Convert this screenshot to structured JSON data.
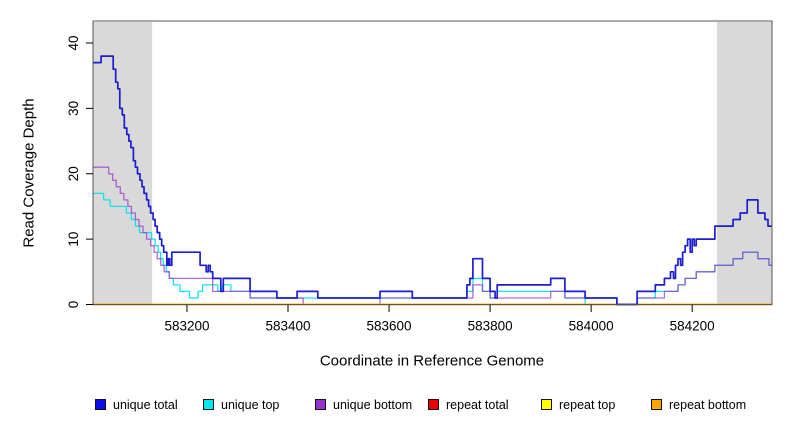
{
  "chart_data": {
    "type": "line",
    "step": true,
    "title": "",
    "xlabel": "Coordinate in Reference Genome",
    "ylabel": "Read Coverage Depth",
    "xlim": [
      583014,
      584358
    ],
    "ylim": [
      0,
      40
    ],
    "xticks": [
      583200,
      583400,
      583600,
      583800,
      584000,
      584200
    ],
    "xtick_labels": [
      "583200",
      "583400",
      "583600",
      "583800",
      "584000",
      "584200"
    ],
    "yticks": [
      0,
      10,
      20,
      30,
      40
    ],
    "ytick_labels": [
      "0",
      "10",
      "20",
      "30",
      "40"
    ],
    "grid": false,
    "shaded_regions": [
      {
        "name": "left-highlight",
        "x0": 583014,
        "x1": 583131,
        "color": "#d9d9d9"
      },
      {
        "name": "right-highlight",
        "x0": 584249,
        "x1": 584358,
        "color": "#d9d9d9"
      }
    ],
    "series": [
      {
        "name": "unique top",
        "color": "#00dfe8",
        "line_opacity": 0.9,
        "line_width": 1.3,
        "points": [
          [
            583014,
            17
          ],
          [
            583035,
            16
          ],
          [
            583048,
            15
          ],
          [
            583080,
            14
          ],
          [
            583090,
            13
          ],
          [
            583098,
            12
          ],
          [
            583106,
            11
          ],
          [
            583130,
            10
          ],
          [
            583137,
            9
          ],
          [
            583143,
            8
          ],
          [
            583148,
            7
          ],
          [
            583153,
            6
          ],
          [
            583159,
            5
          ],
          [
            583165,
            4
          ],
          [
            583173,
            3
          ],
          [
            583186,
            2
          ],
          [
            583205,
            1
          ],
          [
            583222,
            2
          ],
          [
            583231,
            3
          ],
          [
            583261,
            2
          ],
          [
            583270,
            3
          ],
          [
            583287,
            2
          ],
          [
            583325,
            1
          ],
          [
            583754,
            2
          ],
          [
            583766,
            4
          ],
          [
            583785,
            2
          ],
          [
            583800,
            1
          ],
          [
            583814,
            2
          ],
          [
            583948,
            1
          ],
          [
            583988,
            0
          ],
          [
            584091,
            1
          ],
          [
            584127,
            2
          ],
          [
            584172,
            3
          ],
          [
            584186,
            4
          ],
          [
            584208,
            5
          ],
          [
            584245,
            6
          ],
          [
            584281,
            7
          ],
          [
            584300,
            8
          ],
          [
            584330,
            7
          ],
          [
            584352,
            6
          ]
        ]
      },
      {
        "name": "unique bottom",
        "color": "#9932cc",
        "line_opacity": 0.72,
        "line_width": 1.3,
        "points": [
          [
            583014,
            21
          ],
          [
            583045,
            20
          ],
          [
            583053,
            19
          ],
          [
            583060,
            18
          ],
          [
            583068,
            17
          ],
          [
            583075,
            16
          ],
          [
            583083,
            15
          ],
          [
            583090,
            14
          ],
          [
            583098,
            13
          ],
          [
            583105,
            12
          ],
          [
            583113,
            11
          ],
          [
            583120,
            10
          ],
          [
            583128,
            9
          ],
          [
            583135,
            8
          ],
          [
            583141,
            7
          ],
          [
            583148,
            6
          ],
          [
            583155,
            5
          ],
          [
            583165,
            4
          ],
          [
            583251,
            2
          ],
          [
            583325,
            1
          ],
          [
            583430,
            0
          ],
          [
            583582,
            1
          ],
          [
            583754,
            1
          ],
          [
            583766,
            3
          ],
          [
            583785,
            2
          ],
          [
            583800,
            1
          ],
          [
            583814,
            1
          ],
          [
            583920,
            2
          ],
          [
            583948,
            1
          ],
          [
            583988,
            1
          ],
          [
            584051,
            0
          ],
          [
            584091,
            1
          ],
          [
            584145,
            2
          ],
          [
            584172,
            3
          ],
          [
            584186,
            4
          ],
          [
            584208,
            5
          ],
          [
            584245,
            6
          ],
          [
            584281,
            7
          ],
          [
            584300,
            8
          ],
          [
            584330,
            7
          ],
          [
            584352,
            6
          ]
        ]
      },
      {
        "name": "repeat total",
        "color": "#ee0000",
        "line_opacity": 1,
        "line_width": 1.3,
        "points": [
          [
            583014,
            0
          ]
        ]
      },
      {
        "name": "repeat top",
        "color": "#ffff00",
        "line_opacity": 1,
        "line_width": 1.3,
        "points": [
          [
            583014,
            0
          ]
        ]
      },
      {
        "name": "repeat bottom",
        "color": "#ffa500",
        "line_opacity": 1,
        "line_width": 1.7,
        "points": [
          [
            583014,
            0
          ]
        ]
      },
      {
        "name": "unique total",
        "color": "#1d1dd1",
        "line_opacity": 1,
        "line_width": 1.7,
        "points": [
          [
            583014,
            37
          ],
          [
            583030,
            38
          ],
          [
            583054,
            36
          ],
          [
            583059,
            34
          ],
          [
            583063,
            33
          ],
          [
            583067,
            30
          ],
          [
            583072,
            29
          ],
          [
            583076,
            27
          ],
          [
            583081,
            26
          ],
          [
            583085,
            25
          ],
          [
            583089,
            24
          ],
          [
            583094,
            22
          ],
          [
            583098,
            21
          ],
          [
            583102,
            20
          ],
          [
            583107,
            19
          ],
          [
            583111,
            18
          ],
          [
            583115,
            17
          ],
          [
            583120,
            16
          ],
          [
            583124,
            15
          ],
          [
            583128,
            14
          ],
          [
            583133,
            13
          ],
          [
            583137,
            12
          ],
          [
            583141,
            11
          ],
          [
            583146,
            10
          ],
          [
            583150,
            9
          ],
          [
            583154,
            8
          ],
          [
            583160,
            6
          ],
          [
            583163,
            7
          ],
          [
            583166,
            6
          ],
          [
            583170,
            8
          ],
          [
            583226,
            6
          ],
          [
            583238,
            5
          ],
          [
            583242,
            6
          ],
          [
            583246,
            5
          ],
          [
            583251,
            4
          ],
          [
            583267,
            2
          ],
          [
            583272,
            4
          ],
          [
            583325,
            2
          ],
          [
            583378,
            1
          ],
          [
            583418,
            2
          ],
          [
            583459,
            1
          ],
          [
            583582,
            2
          ],
          [
            583646,
            1
          ],
          [
            583754,
            3
          ],
          [
            583760,
            4
          ],
          [
            583766,
            7
          ],
          [
            583785,
            4
          ],
          [
            583800,
            2
          ],
          [
            583810,
            1
          ],
          [
            583814,
            3
          ],
          [
            583920,
            4
          ],
          [
            583948,
            2
          ],
          [
            583988,
            1
          ],
          [
            584051,
            0
          ],
          [
            584091,
            2
          ],
          [
            584127,
            3
          ],
          [
            584145,
            4
          ],
          [
            584157,
            5
          ],
          [
            584163,
            4
          ],
          [
            584167,
            6
          ],
          [
            584172,
            7
          ],
          [
            584177,
            6
          ],
          [
            584181,
            8
          ],
          [
            584186,
            9
          ],
          [
            584191,
            10
          ],
          [
            584196,
            8
          ],
          [
            584200,
            10
          ],
          [
            584204,
            9
          ],
          [
            584208,
            10
          ],
          [
            584245,
            12
          ],
          [
            584281,
            13
          ],
          [
            584295,
            14
          ],
          [
            584309,
            16
          ],
          [
            584330,
            14
          ],
          [
            584344,
            13
          ],
          [
            584350,
            12
          ]
        ]
      }
    ],
    "legend": {
      "position": "bottom",
      "entries": [
        {
          "label": "unique total",
          "color": "#0d0dee"
        },
        {
          "label": "unique top",
          "color": "#00eaf0"
        },
        {
          "label": "unique bottom",
          "color": "#9932cc"
        },
        {
          "label": "repeat total",
          "color": "#ee0000"
        },
        {
          "label": "repeat top",
          "color": "#ffff00"
        },
        {
          "label": "repeat bottom",
          "color": "#ffa500"
        }
      ]
    }
  }
}
